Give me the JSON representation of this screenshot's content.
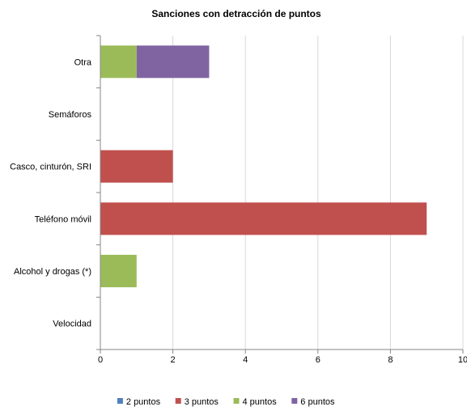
{
  "chart_data": {
    "type": "bar",
    "orientation": "horizontal",
    "stacked": true,
    "title": "Sanciones con detracción de puntos",
    "xlabel": "",
    "ylabel": "",
    "categories": [
      "Velocidad",
      "Alcohol y drogas (*)",
      "Teléfono móvil",
      "Casco, cinturón, SRI",
      "Semáforos",
      "Otra"
    ],
    "series": [
      {
        "name": "2 puntos",
        "color": "#4F81BD",
        "values": [
          0,
          0,
          0,
          0,
          0,
          0
        ]
      },
      {
        "name": "3 puntos",
        "color": "#C0504D",
        "values": [
          0,
          0,
          9,
          2,
          0,
          0
        ]
      },
      {
        "name": "4 puntos",
        "color": "#9BBB59",
        "values": [
          0,
          1,
          0,
          0,
          0,
          1
        ]
      },
      {
        "name": "6 puntos",
        "color": "#8064A2",
        "values": [
          0,
          0,
          0,
          0,
          0,
          2
        ]
      }
    ],
    "xlim": [
      0,
      10
    ],
    "xticks": [
      "0",
      "2",
      "4",
      "6",
      "8",
      "10"
    ],
    "grid": true,
    "legend_position": "bottom"
  }
}
